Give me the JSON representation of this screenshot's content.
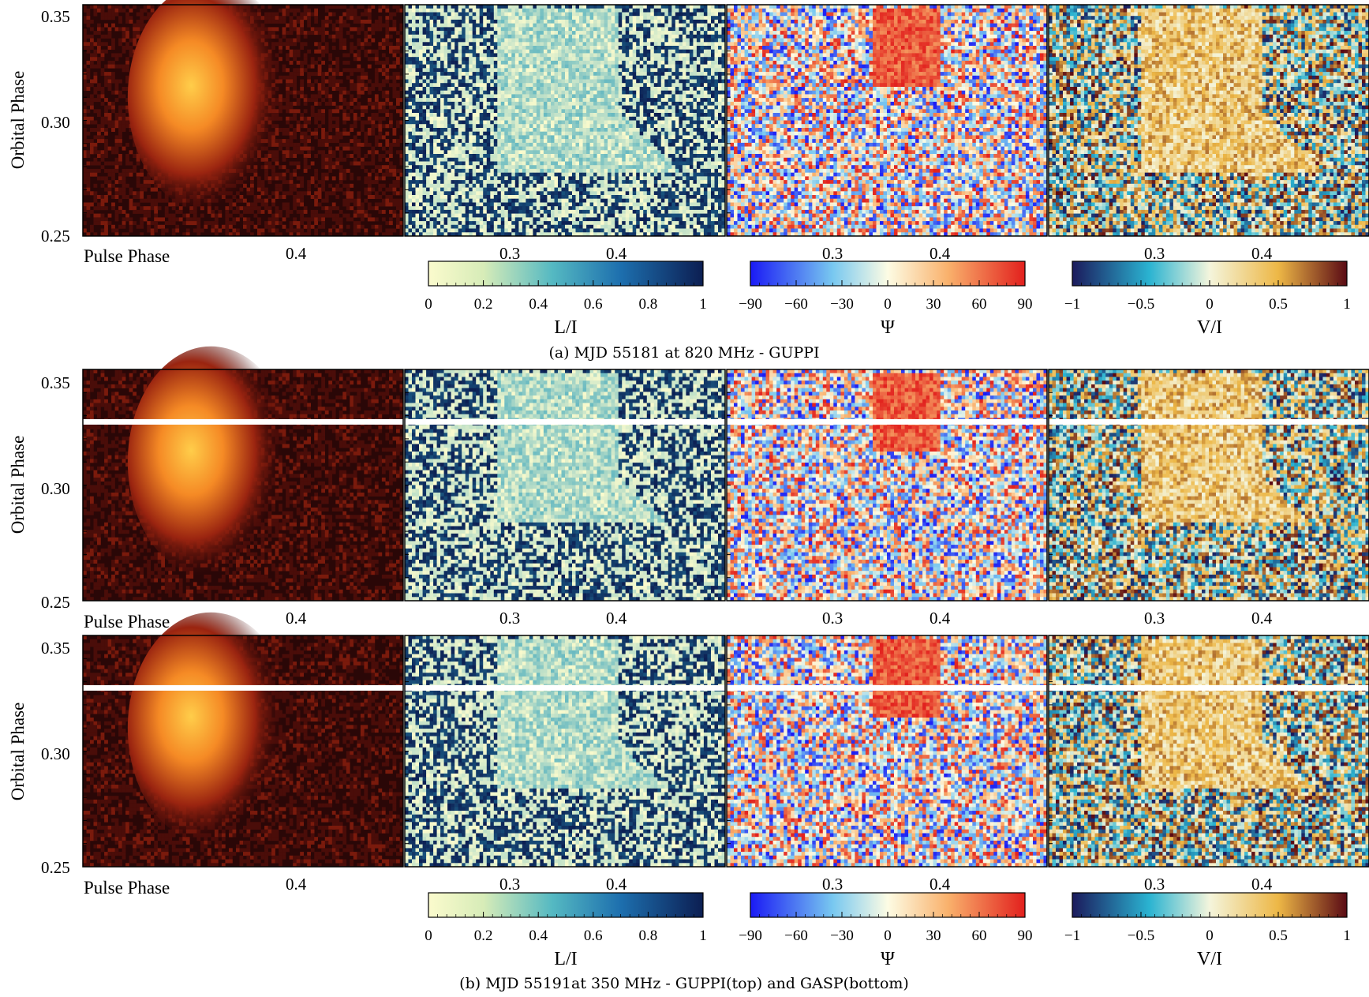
{
  "chart_data": {
    "type": "heatmap",
    "figure_rows": [
      {
        "caption": "(a) MJD 55181 at 820 MHz - GUPPI",
        "ylabel": "Orbital Phase",
        "xlabel": "Pulse Phase",
        "y_ticks": [
          "0.25",
          "0.30",
          "0.35"
        ],
        "ylim": [
          0.25,
          0.355
        ],
        "panels": [
          {
            "quantity": "I",
            "x_ticks": [
              "0.4"
            ]
          },
          {
            "quantity": "L/I",
            "x_ticks": [
              "0.3",
              "0.4"
            ]
          },
          {
            "quantity": "Ψ",
            "x_ticks": [
              "0.3",
              "0.4"
            ]
          },
          {
            "quantity": "V/I",
            "x_ticks": [
              "0.3",
              "0.4"
            ]
          }
        ],
        "eclipse_feature": {
          "orbital_phase_range": [
            0.278,
            0.355
          ],
          "pulse_phase_range": [
            0.24,
            0.4
          ]
        }
      },
      {
        "caption": "(b) MJD 55191at 350 MHz - GUPPI(top) and GASP(bottom)",
        "subrows": [
          {
            "backend": "GUPPI",
            "ylabel": "Orbital Phase",
            "xlabel": "Pulse Phase",
            "y_ticks": [
              "0.25",
              "0.30",
              "0.35"
            ],
            "ylim": [
              0.25,
              0.355
            ],
            "data_gap_orbital_phase": 0.333,
            "panels": [
              {
                "quantity": "I",
                "x_ticks": [
                  "0.4"
                ]
              },
              {
                "quantity": "L/I",
                "x_ticks": [
                  "0.3",
                  "0.4"
                ]
              },
              {
                "quantity": "Ψ",
                "x_ticks": [
                  "0.3",
                  "0.4"
                ]
              },
              {
                "quantity": "V/I",
                "x_ticks": [
                  "0.3",
                  "0.4"
                ]
              }
            ]
          },
          {
            "backend": "GASP",
            "ylabel": "Orbital Phase",
            "xlabel": "Pulse Phase",
            "y_ticks": [
              "0.25",
              "0.30",
              "0.35"
            ],
            "ylim": [
              0.25,
              0.355
            ],
            "data_gap_orbital_phase": 0.333,
            "panels": [
              {
                "quantity": "I",
                "x_ticks": [
                  "0.4"
                ]
              },
              {
                "quantity": "L/I",
                "x_ticks": [
                  "0.3",
                  "0.4"
                ]
              },
              {
                "quantity": "Ψ",
                "x_ticks": [
                  "0.3",
                  "0.4"
                ]
              },
              {
                "quantity": "V/I",
                "x_ticks": [
                  "0.3",
                  "0.4"
                ]
              }
            ]
          }
        ]
      }
    ],
    "colorbars": [
      {
        "label": "L/I",
        "range": [
          0,
          1
        ],
        "ticks": [
          "0",
          "0.2",
          "0.4",
          "0.6",
          "0.8",
          "1"
        ],
        "colors": [
          "#fbfbcd",
          "#2a9ebc",
          "#0c1e52"
        ]
      },
      {
        "label": "Ψ",
        "range": [
          -90,
          90
        ],
        "ticks": [
          "−90",
          "−60",
          "−30",
          "0",
          "30",
          "60",
          "90"
        ],
        "colors": [
          "#1a1af5",
          "#78c8f0",
          "#fdfce4",
          "#f9b16c",
          "#e2201d"
        ]
      },
      {
        "label": "V/I",
        "range": [
          -1,
          1
        ],
        "ticks": [
          "−1",
          "−0.5",
          "0",
          "0.5",
          "1"
        ],
        "colors": [
          "#1b1a5c",
          "#2ab3d1",
          "#f4f5dc",
          "#edb746",
          "#5a0a14"
        ]
      }
    ]
  },
  "captions": {
    "a": "(a) MJD 55181 at 820 MHz - GUPPI",
    "b": "(b) MJD 55191at 350 MHz - GUPPI(top) and GASP(bottom)"
  },
  "labels": {
    "orbital_phase": "Orbital Phase",
    "pulse_phase": "Pulse Phase",
    "y_tick_025": "0.25",
    "y_tick_030": "0.30",
    "y_tick_035": "0.35",
    "x_tick_03": "0.3",
    "x_tick_04": "0.4",
    "cb_LI": "L/I",
    "cb_Psi": "Ψ",
    "cb_VI": "V/I"
  }
}
